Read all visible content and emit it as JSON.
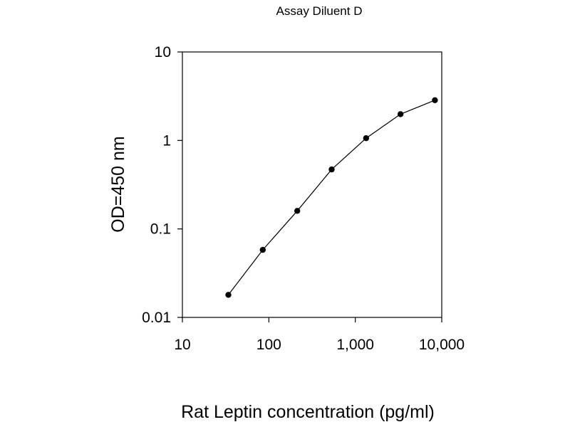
{
  "chart_data": {
    "type": "scatter",
    "title": "Assay Diluent D",
    "xlabel": "Rat Leptin concentration (pg/ml)",
    "ylabel": "OD=450 nm",
    "x_scale": "log",
    "y_scale": "log",
    "xlim": [
      10,
      10000
    ],
    "ylim": [
      0.01,
      10
    ],
    "x_ticks": [
      {
        "value": 10,
        "label": "10"
      },
      {
        "value": 100,
        "label": "100"
      },
      {
        "value": 1000,
        "label": "1,000"
      },
      {
        "value": 10000,
        "label": "10,000"
      }
    ],
    "y_ticks": [
      {
        "value": 0.01,
        "label": "0.01"
      },
      {
        "value": 0.1,
        "label": "0.1"
      },
      {
        "value": 1,
        "label": "1"
      },
      {
        "value": 10,
        "label": "10"
      }
    ],
    "grid": false,
    "line_connected": true,
    "series": [
      {
        "x": [
          34,
          85,
          213,
          533,
          1333,
          3333,
          8333
        ],
        "y": [
          0.018,
          0.058,
          0.16,
          0.47,
          1.06,
          1.98,
          2.85
        ]
      }
    ],
    "colors": {
      "marker": "#000000",
      "line": "#000000",
      "axis": "#000000"
    }
  }
}
